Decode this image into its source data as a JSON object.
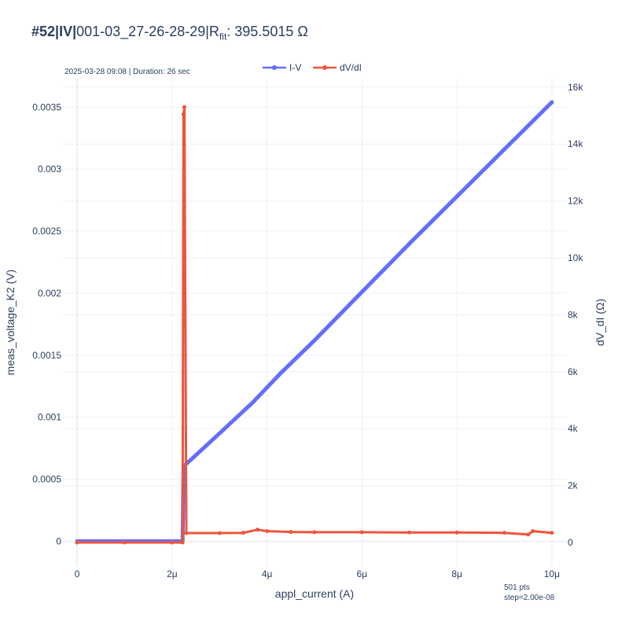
{
  "title": {
    "prefix": "#52|IV|",
    "device": "001-03_27-26-28-29|R",
    "sub": "fit",
    "value": ": 395.5015 Ω"
  },
  "meta_text": "2025-03-28 09:08 | Duration: 26 sec",
  "footer": {
    "pts": "501 pts",
    "step": "step=2.00e-08"
  },
  "colors": {
    "iv": "#636efa",
    "dvdi": "#ef553b",
    "grid": "#ebf0f8",
    "text": "#2a3f5f"
  },
  "chart_data": {
    "type": "line",
    "xlabel": "appl_current (A)",
    "ylabel": "meas_voltage_K2 (V)",
    "y2label": "dV_dI (Ω)",
    "xlim": [
      -3e-07,
      1.03e-05
    ],
    "ylim": [
      -0.0002,
      0.00373
    ],
    "y2lim": [
      -830,
      16300
    ],
    "x_ticks": [
      {
        "v": 0,
        "label": "0"
      },
      {
        "v": 2e-06,
        "label": "2μ"
      },
      {
        "v": 4e-06,
        "label": "4μ"
      },
      {
        "v": 6e-06,
        "label": "6μ"
      },
      {
        "v": 8e-06,
        "label": "8μ"
      },
      {
        "v": 1e-05,
        "label": "10μ"
      }
    ],
    "y_ticks": [
      {
        "v": 0,
        "label": "0"
      },
      {
        "v": 0.0005,
        "label": "0.0005"
      },
      {
        "v": 0.001,
        "label": "0.001"
      },
      {
        "v": 0.0015,
        "label": "0.0015"
      },
      {
        "v": 0.002,
        "label": "0.002"
      },
      {
        "v": 0.0025,
        "label": "0.0025"
      },
      {
        "v": 0.003,
        "label": "0.003"
      },
      {
        "v": 0.0035,
        "label": "0.0035"
      }
    ],
    "y2_ticks": [
      {
        "v": 0,
        "label": "0"
      },
      {
        "v": 2000,
        "label": "2k"
      },
      {
        "v": 4000,
        "label": "4k"
      },
      {
        "v": 6000,
        "label": "6k"
      },
      {
        "v": 8000,
        "label": "8k"
      },
      {
        "v": 10000,
        "label": "10k"
      },
      {
        "v": 12000,
        "label": "12k"
      },
      {
        "v": 14000,
        "label": "14k"
      },
      {
        "v": 16000,
        "label": "16k"
      }
    ],
    "legend": {
      "placement": "top-center"
    },
    "grid": true,
    "series": [
      {
        "name": "I-V",
        "axis": "y",
        "x": [
          0,
          1e-06,
          2e-06,
          2.22e-06,
          2.24e-06,
          2.26e-06,
          3e-06,
          3.7e-06,
          4e-06,
          4.3e-06,
          5e-06,
          6e-06,
          7e-06,
          8e-06,
          9e-06,
          1e-05
        ],
        "y": [
          0,
          0,
          0,
          0,
          0.00059,
          0.00061,
          0.00087,
          0.00112,
          0.00124,
          0.00136,
          0.00162,
          0.00201,
          0.0024,
          0.00278,
          0.00316,
          0.00354
        ]
      },
      {
        "name": "dV/dI",
        "axis": "y2",
        "x": [
          0,
          1e-06,
          2e-06,
          2.22e-06,
          2.24e-06,
          2.26e-06,
          2.3e-06,
          3e-06,
          3.5e-06,
          3.8e-06,
          4e-06,
          4.5e-06,
          5e-06,
          6e-06,
          7e-06,
          8e-06,
          9e-06,
          9.5e-06,
          9.6e-06,
          1e-05
        ],
        "y": [
          0,
          0,
          0,
          0,
          15050,
          15300,
          330,
          330,
          340,
          450,
          400,
          370,
          360,
          360,
          350,
          350,
          340,
          280,
          400,
          340
        ]
      }
    ]
  }
}
